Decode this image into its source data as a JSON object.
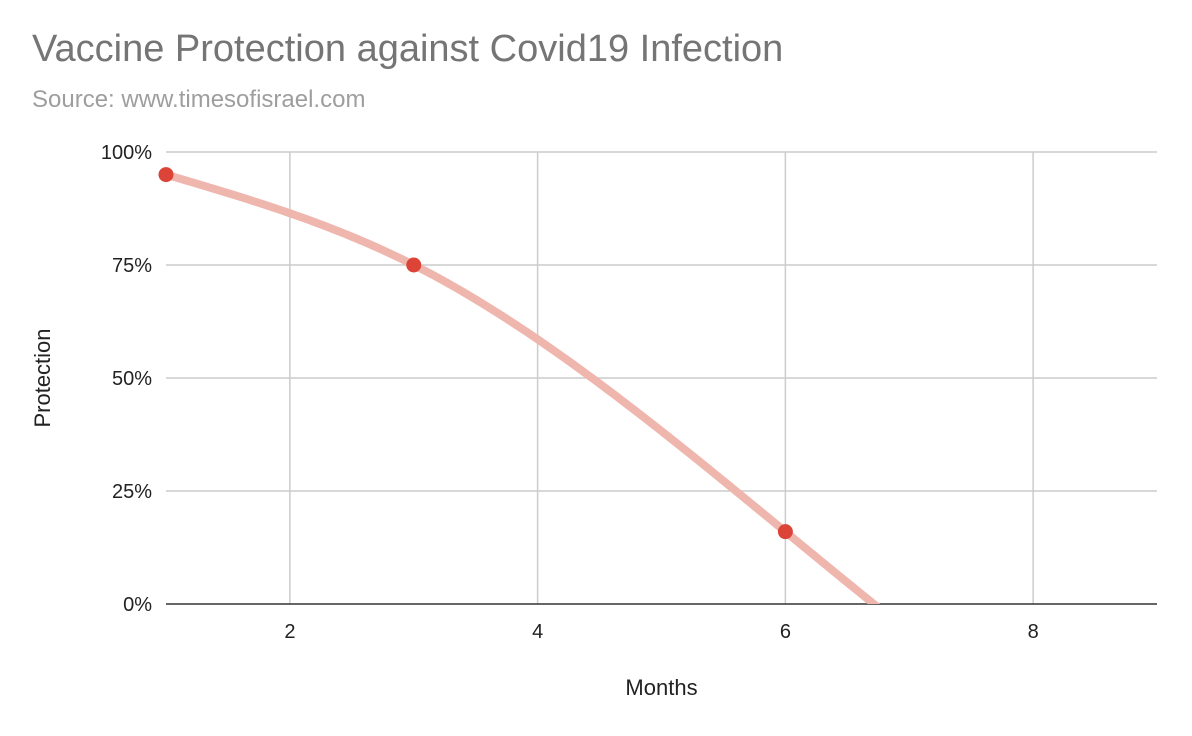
{
  "chart_data": {
    "type": "line",
    "title": "Vaccine Protection against Covid19 Infection",
    "subtitle": "Source: www.timesofisrael.com",
    "xlabel": "Months",
    "ylabel": "Protection",
    "xlim": [
      1,
      9
    ],
    "ylim": [
      0,
      100
    ],
    "x_ticks": [
      2,
      4,
      6,
      8
    ],
    "y_ticks": [
      0,
      25,
      50,
      75,
      100
    ],
    "y_tick_labels": [
      "0%",
      "25%",
      "50%",
      "75%",
      "100%"
    ],
    "grid": true,
    "legend": "none",
    "smooth": true,
    "series": [
      {
        "x": [
          1,
          3,
          6
        ],
        "values": [
          95,
          75,
          16
        ],
        "line_color": "#efb6ae",
        "point_color": "#db4437"
      }
    ]
  }
}
